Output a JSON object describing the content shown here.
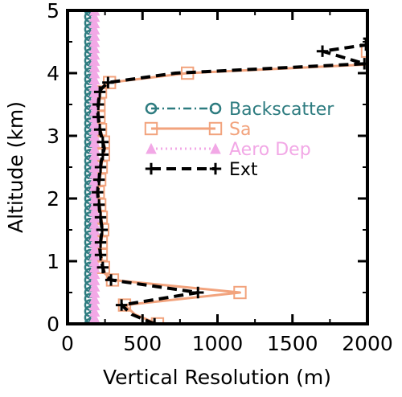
{
  "chart_data": {
    "type": "line",
    "xlabel": "Vertical Resolution (m)",
    "ylabel": "Altitude (km)",
    "xlim": [
      0,
      2000
    ],
    "ylim": [
      0,
      5
    ],
    "xticks": [
      "0",
      "500",
      "1000",
      "1500",
      "2000"
    ],
    "yticks": [
      "0",
      "1",
      "2",
      "3",
      "4",
      "5"
    ],
    "grid": false,
    "legend_position": "center-right",
    "series": [
      {
        "name": "Backscatter",
        "color": "#2e7c80",
        "line_style": "dash-dot",
        "marker": "circle",
        "x": [
          150,
          150,
          150,
          150,
          150,
          150,
          150,
          150,
          150,
          150,
          150,
          150,
          150,
          150,
          150,
          150,
          150,
          150,
          150,
          150,
          150,
          150,
          150,
          150,
          150,
          150,
          150,
          150,
          150,
          150,
          150,
          150,
          150,
          150,
          150,
          150,
          150,
          150,
          150,
          150,
          150,
          150,
          150,
          150,
          150,
          150,
          150,
          150,
          150,
          150,
          150
        ],
        "y": [
          0,
          0.1,
          0.2,
          0.3,
          0.4,
          0.5,
          0.6,
          0.7,
          0.8,
          0.9,
          1.0,
          1.1,
          1.2,
          1.3,
          1.4,
          1.5,
          1.6,
          1.7,
          1.8,
          1.9,
          2.0,
          2.1,
          2.2,
          2.3,
          2.4,
          2.5,
          2.6,
          2.7,
          2.8,
          2.9,
          3.0,
          3.1,
          3.2,
          3.3,
          3.4,
          3.5,
          3.6,
          3.7,
          3.8,
          3.9,
          4.0,
          4.1,
          4.2,
          4.3,
          4.4,
          4.5,
          4.6,
          4.7,
          4.8,
          4.9,
          5.0
        ]
      },
      {
        "name": "Sa",
        "color": "#f2a37d",
        "line_style": "solid",
        "marker": "square",
        "x": [
          600,
          450,
          380,
          1150,
          300,
          250,
          240,
          230,
          225,
          220,
          225,
          230,
          235,
          230,
          225,
          220,
          215,
          210,
          205,
          210,
          215,
          220,
          225,
          230,
          240,
          250,
          240,
          230,
          220,
          215,
          210,
          205,
          210,
          215,
          220,
          230,
          280,
          800,
          2100,
          2000
        ],
        "y": [
          0,
          0.15,
          0.3,
          0.5,
          0.7,
          0.8,
          0.9,
          1.0,
          1.1,
          1.2,
          1.3,
          1.4,
          1.5,
          1.6,
          1.7,
          1.8,
          1.9,
          2.0,
          2.1,
          2.2,
          2.3,
          2.4,
          2.5,
          2.6,
          2.7,
          2.8,
          2.9,
          3.0,
          3.1,
          3.2,
          3.3,
          3.4,
          3.5,
          3.6,
          3.7,
          3.75,
          3.85,
          4.0,
          4.15,
          4.35
        ]
      },
      {
        "name": "Aero Dep",
        "color": "#f2a8e6",
        "line_style": "dotted",
        "marker": "triangle",
        "x": [
          180,
          180,
          180,
          180,
          180,
          180,
          180,
          180,
          180,
          180,
          180,
          180,
          180,
          180,
          180,
          180,
          180,
          180,
          180,
          180,
          180,
          180,
          180,
          180,
          180,
          180,
          180,
          180,
          180,
          180,
          180,
          180,
          180,
          180,
          180,
          180,
          180,
          180,
          180,
          180,
          180,
          180,
          180,
          180,
          180,
          180,
          180,
          180,
          180,
          180,
          180
        ],
        "y": [
          0,
          0.1,
          0.2,
          0.3,
          0.4,
          0.5,
          0.6,
          0.7,
          0.8,
          0.9,
          1.0,
          1.1,
          1.2,
          1.3,
          1.4,
          1.5,
          1.6,
          1.7,
          1.8,
          1.9,
          2.0,
          2.1,
          2.2,
          2.3,
          2.4,
          2.5,
          2.6,
          2.7,
          2.8,
          2.9,
          3.0,
          3.1,
          3.2,
          3.3,
          3.4,
          3.5,
          3.6,
          3.7,
          3.8,
          3.9,
          4.0,
          4.1,
          4.2,
          4.3,
          4.4,
          4.5,
          4.6,
          4.7,
          4.8,
          4.9,
          5.0
        ]
      },
      {
        "name": "Ext",
        "color": "#000000",
        "line_style": "dashed",
        "marker": "plus",
        "x": [
          580,
          430,
          360,
          870,
          290,
          245,
          235,
          225,
          220,
          215,
          220,
          225,
          230,
          225,
          220,
          215,
          210,
          205,
          200,
          205,
          210,
          215,
          220,
          225,
          235,
          245,
          235,
          225,
          215,
          210,
          205,
          200,
          205,
          210,
          215,
          225,
          270,
          720,
          1980,
          1700,
          1990,
          2010
        ],
        "y": [
          0,
          0.15,
          0.3,
          0.5,
          0.7,
          0.8,
          0.9,
          1.0,
          1.1,
          1.2,
          1.3,
          1.4,
          1.5,
          1.6,
          1.7,
          1.8,
          1.9,
          2.0,
          2.1,
          2.2,
          2.3,
          2.4,
          2.5,
          2.6,
          2.7,
          2.8,
          2.9,
          3.0,
          3.1,
          3.2,
          3.3,
          3.4,
          3.5,
          3.6,
          3.7,
          3.75,
          3.85,
          4.0,
          4.15,
          4.35,
          4.45,
          4.55
        ]
      }
    ]
  }
}
